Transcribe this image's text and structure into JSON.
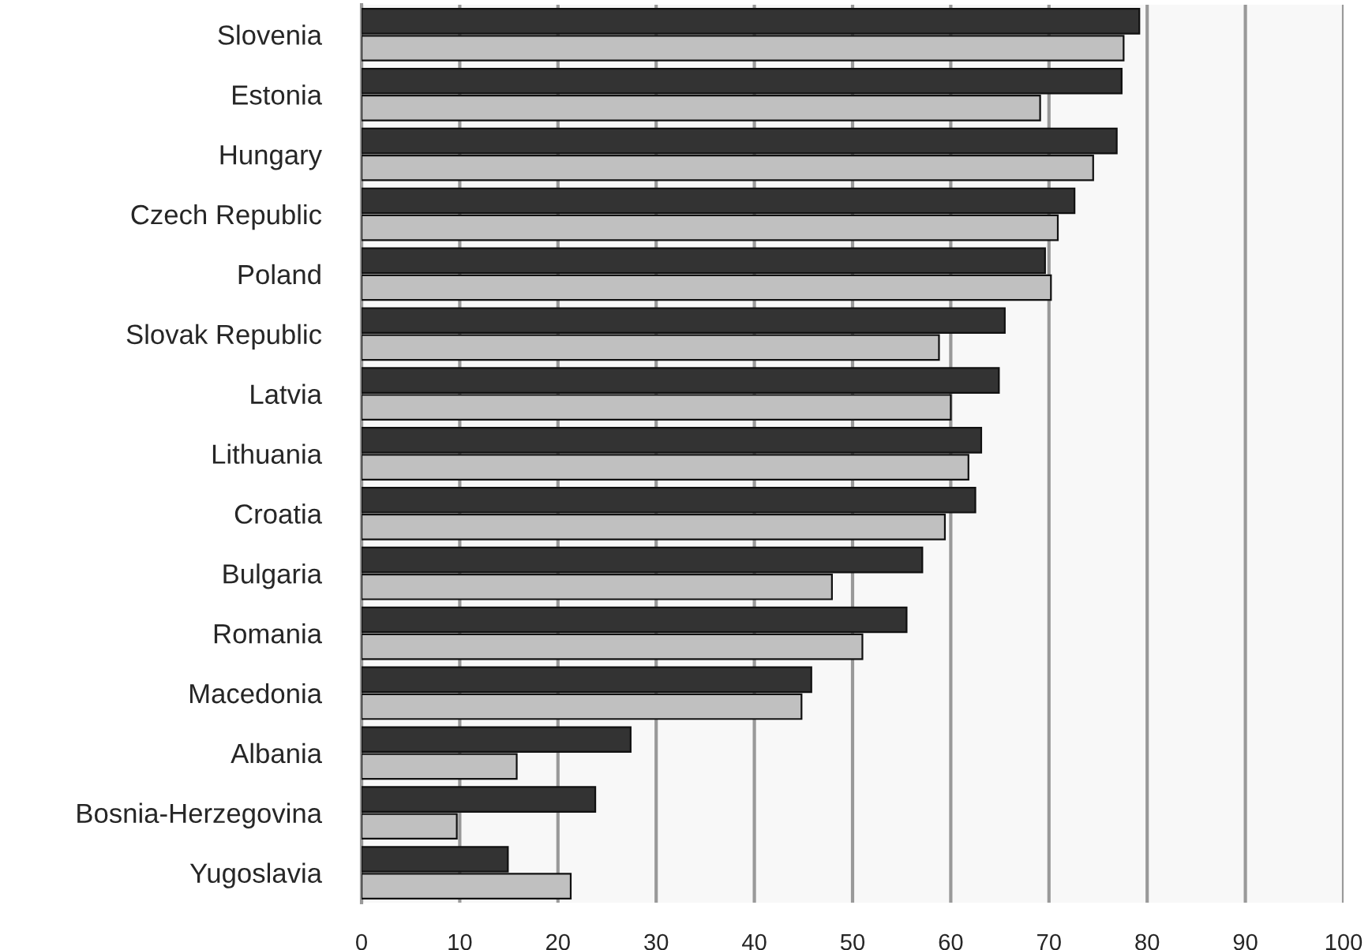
{
  "chart_data": {
    "type": "bar",
    "orientation": "horizontal",
    "categories": [
      "Slovenia",
      "Estonia",
      "Hungary",
      "Czech Republic",
      "Poland",
      "Slovak Republic",
      "Latvia",
      "Lithuania",
      "Croatia",
      "Bulgaria",
      "Romania",
      "Macedonia",
      "Albania",
      "Bosnia-Herzegovina",
      "Yugoslavia"
    ],
    "series": [
      {
        "color": "#333333",
        "values": [
          79.2,
          77.4,
          76.9,
          72.6,
          69.6,
          65.5,
          64.9,
          63.1,
          62.5,
          57.1,
          55.5,
          45.8,
          27.4,
          23.8,
          14.9
        ]
      },
      {
        "color": "#c0c0c0",
        "values": [
          77.6,
          69.1,
          74.5,
          70.9,
          70.2,
          58.8,
          60.0,
          61.8,
          59.4,
          47.9,
          51.0,
          44.8,
          15.8,
          9.7,
          21.3
        ]
      }
    ],
    "xlim": [
      0,
      100
    ],
    "xticks": [
      0,
      10,
      20,
      30,
      40,
      50,
      60,
      70,
      80,
      90,
      100
    ],
    "grid": "x",
    "legend": false
  }
}
